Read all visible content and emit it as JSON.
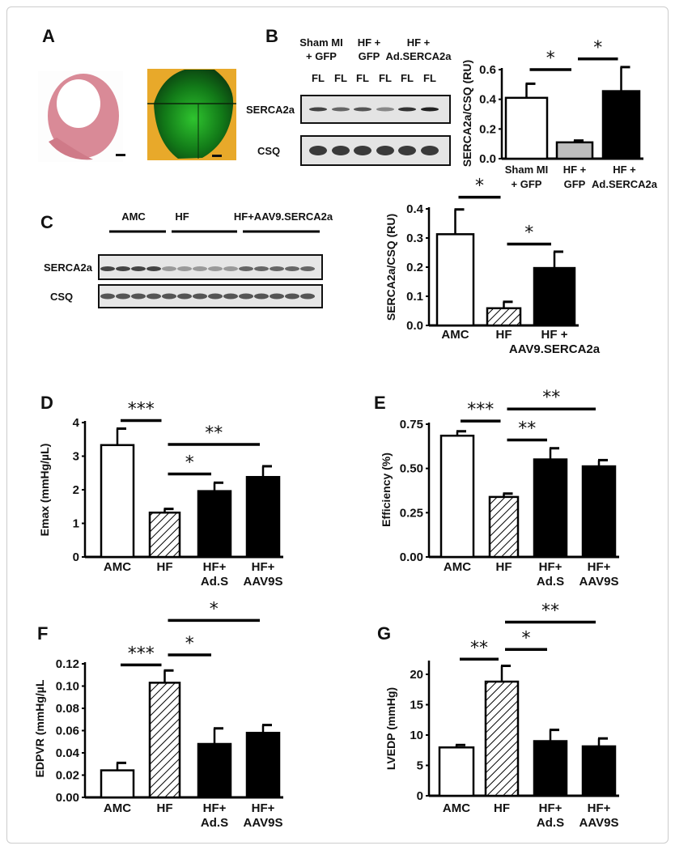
{
  "panel_labels": [
    "A",
    "B",
    "C",
    "D",
    "E",
    "F",
    "G"
  ],
  "blot_B": {
    "groups": [
      [
        "Sham MI",
        "+ GFP"
      ],
      [
        "HF +",
        "GFP"
      ],
      [
        "HF +",
        "Ad.SERCA2a"
      ]
    ],
    "lanes": [
      "FL",
      "FL",
      "FL",
      "FL",
      "FL",
      "FL"
    ],
    "rows": [
      "SERCA2a",
      "CSQ"
    ]
  },
  "blot_C": {
    "groups": [
      "AMC",
      "HF",
      "HF+AAV9.SERCA2a"
    ],
    "rows": [
      "SERCA2a",
      "CSQ"
    ]
  },
  "colors": {
    "open": "#ffffff",
    "gray": "#bdbdbd",
    "filled": "#000000"
  },
  "chart_data": [
    {
      "panel": "B",
      "type": "bar",
      "ylabel": "SERCA2a/CSQ (RU)",
      "ylim": [
        0,
        0.6
      ],
      "yticks": [
        0,
        0.2,
        0.4,
        0.6
      ],
      "tick_labels": [
        "0.0",
        "0.2",
        "0.4",
        "0.6"
      ],
      "categories": [
        [
          "Sham MI",
          "+ GFP"
        ],
        [
          "HF +",
          "GFP"
        ],
        [
          "HF +",
          "Ad.SERCA2a"
        ]
      ],
      "values": [
        0.41,
        0.11,
        0.455
      ],
      "errors": [
        0.095,
        0.012,
        0.162
      ],
      "fills": [
        "open",
        "gray",
        "filled"
      ],
      "significance": [
        {
          "from": 0,
          "to": 1,
          "y": 0.6,
          "label": "*"
        },
        {
          "from": 1,
          "to": 2,
          "y": 0.672,
          "label": "*"
        }
      ]
    },
    {
      "panel": "C",
      "type": "bar",
      "ylabel": "SERCA2a/CSQ (RU)",
      "ylim": [
        0,
        0.4
      ],
      "yticks": [
        0,
        0.1,
        0.2,
        0.3,
        0.4
      ],
      "tick_labels": [
        "0.0",
        "0.1",
        "0.2",
        "0.3",
        "0.4"
      ],
      "categories": [
        [
          "AMC"
        ],
        [
          "HF"
        ],
        [
          "HF +",
          "AAV9.SERCA2a"
        ]
      ],
      "values": [
        0.313,
        0.059,
        0.197
      ],
      "errors": [
        0.085,
        0.022,
        0.056
      ],
      "fills": [
        "open",
        "hatch",
        "filled"
      ],
      "significance": [
        {
          "from": 0,
          "to": 1,
          "y": 0.44,
          "label": "*"
        },
        {
          "from": 1,
          "to": 2,
          "y": 0.279,
          "label": "*"
        }
      ]
    },
    {
      "panel": "D",
      "type": "bar",
      "ylabel": "Emax (mmHg/µL)",
      "ylim": [
        0,
        4
      ],
      "yticks": [
        0,
        1,
        2,
        3,
        4
      ],
      "tick_labels": [
        "0",
        "1",
        "2",
        "3",
        "4"
      ],
      "categories": [
        [
          "AMC"
        ],
        [
          "HF"
        ],
        [
          "HF+",
          "Ad.S"
        ],
        [
          "HF+",
          "AAV9S"
        ]
      ],
      "values": [
        3.33,
        1.32,
        1.96,
        2.38
      ],
      "errors": [
        0.49,
        0.11,
        0.25,
        0.32
      ],
      "fills": [
        "open",
        "hatch",
        "filled",
        "filled"
      ],
      "significance": [
        {
          "from": 0,
          "to": 1,
          "y": 4.06,
          "label": "***"
        },
        {
          "from": 1,
          "to": 3,
          "y": 3.35,
          "label": "**"
        },
        {
          "from": 1,
          "to": 2,
          "y": 2.47,
          "label": "*"
        }
      ]
    },
    {
      "panel": "E",
      "type": "bar",
      "ylabel": "Efficiency (%)",
      "ylim": [
        0,
        0.75
      ],
      "yticks": [
        0,
        0.25,
        0.5,
        0.75
      ],
      "tick_labels": [
        "0.00",
        "0.25",
        "0.50",
        "0.75"
      ],
      "categories": [
        [
          "AMC"
        ],
        [
          "HF"
        ],
        [
          "HF+",
          "Ad.S"
        ],
        [
          "HF+",
          "AAV9S"
        ]
      ],
      "values": [
        0.685,
        0.339,
        0.551,
        0.512
      ],
      "errors": [
        0.025,
        0.019,
        0.063,
        0.035
      ],
      "fills": [
        "open",
        "hatch",
        "filled",
        "filled"
      ],
      "significance": [
        {
          "from": 0,
          "to": 1,
          "y": 0.768,
          "label": "***"
        },
        {
          "from": 1,
          "to": 3,
          "y": 0.836,
          "label": "**"
        },
        {
          "from": 1,
          "to": 2,
          "y": 0.661,
          "label": "**"
        }
      ]
    },
    {
      "panel": "F",
      "type": "bar",
      "ylabel": "EDPVR (mmHg/µL",
      "ylim": [
        0,
        0.12
      ],
      "yticks": [
        0,
        0.02,
        0.04,
        0.06,
        0.08,
        0.1,
        0.12
      ],
      "tick_labels": [
        "0.00",
        "0.02",
        "0.04",
        "0.06",
        "0.08",
        "0.10",
        "0.12"
      ],
      "categories": [
        [
          "AMC"
        ],
        [
          "HF"
        ],
        [
          "HF+",
          "Ad.S"
        ],
        [
          "HF+",
          "AAV9S"
        ]
      ],
      "values": [
        0.0243,
        0.103,
        0.048,
        0.058
      ],
      "errors": [
        0.0067,
        0.011,
        0.014,
        0.007
      ],
      "fills": [
        "open",
        "hatch",
        "filled",
        "filled"
      ],
      "significance": [
        {
          "from": 0,
          "to": 1,
          "y": 0.119,
          "label": "***"
        },
        {
          "from": 1,
          "to": 2,
          "y": 0.128,
          "label": "*"
        },
        {
          "from": 1,
          "to": 3,
          "y": 0.159,
          "label": "*"
        }
      ]
    },
    {
      "panel": "G",
      "type": "bar",
      "ylabel": "LVEDP (mmHg)",
      "ylim": [
        0,
        22
      ],
      "yticks": [
        0,
        5,
        10,
        15,
        20
      ],
      "tick_labels": [
        "0",
        "5",
        "10",
        "15",
        "20"
      ],
      "categories": [
        [
          "AMC"
        ],
        [
          "HF"
        ],
        [
          "HF+",
          "Ad.S"
        ],
        [
          "HF+",
          "AAV9S"
        ]
      ],
      "values": [
        7.96,
        18.8,
        9.0,
        8.14
      ],
      "errors": [
        0.4,
        2.6,
        1.85,
        1.3
      ],
      "fills": [
        "open",
        "hatch",
        "filled",
        "filled"
      ],
      "significance": [
        {
          "from": 0,
          "to": 1,
          "y": 22.5,
          "label": "**"
        },
        {
          "from": 1,
          "to": 2,
          "y": 24.1,
          "label": "*"
        },
        {
          "from": 1,
          "to": 3,
          "y": 28.6,
          "label": "**"
        }
      ]
    }
  ]
}
